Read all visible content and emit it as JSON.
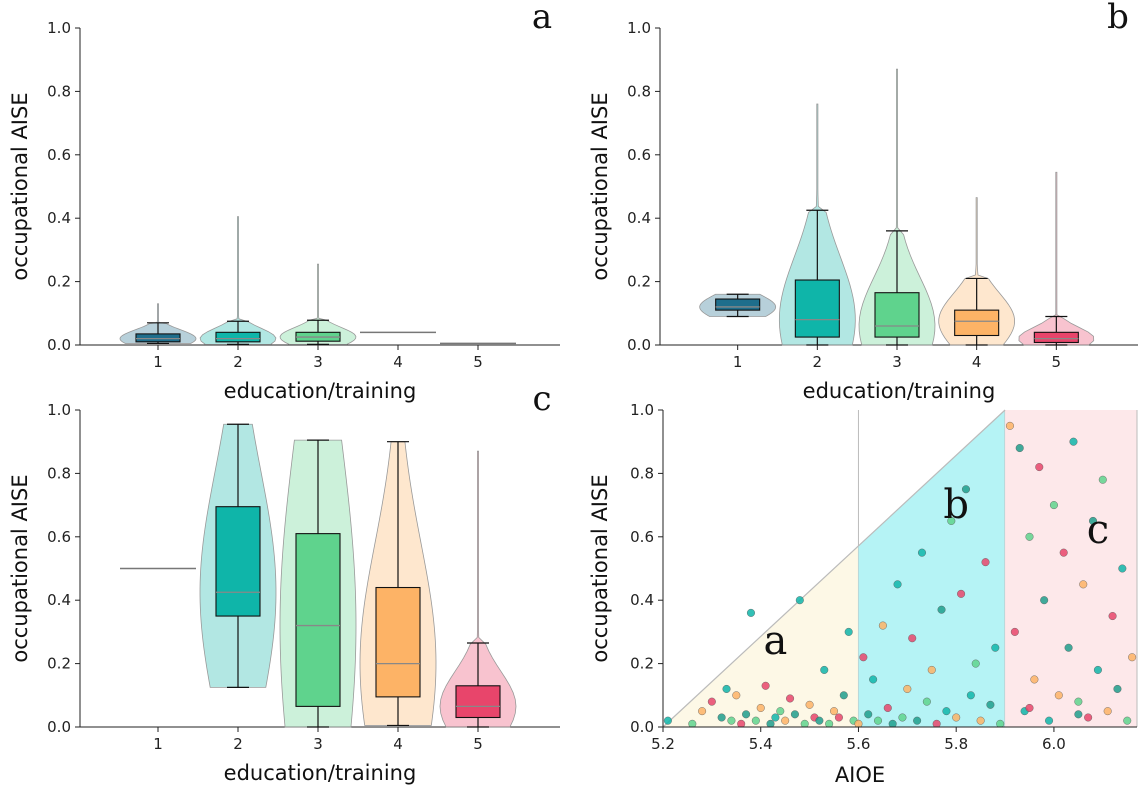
{
  "chart_data": [
    {
      "type": "violin",
      "panel_label": "a",
      "xlabel": "education/training",
      "ylabel": "occupational AISE",
      "ylim": [
        0,
        1.0
      ],
      "yticks": [
        "0.0",
        "0.2",
        "0.4",
        "0.6",
        "0.8",
        "1.0"
      ],
      "categories": [
        "1",
        "2",
        "3",
        "4",
        "5"
      ],
      "groups": [
        {
          "category": "1",
          "min": 0.005,
          "q1": 0.01,
          "median": 0.02,
          "q3": 0.035,
          "max": 0.07,
          "violin_max": 0.13,
          "color": "#1f6e8c"
        },
        {
          "category": "2",
          "min": 0.002,
          "q1": 0.01,
          "median": 0.02,
          "q3": 0.04,
          "max": 0.075,
          "violin_max": 0.405,
          "color": "#0fb5a9"
        },
        {
          "category": "3",
          "min": 0.002,
          "q1": 0.012,
          "median": 0.025,
          "q3": 0.04,
          "max": 0.078,
          "violin_max": 0.255,
          "color": "#5fd38d"
        },
        {
          "category": "4",
          "single_value": 0.04,
          "color": "#fdb366"
        },
        {
          "category": "5",
          "single_value": 0.005,
          "color": "#e8456b"
        }
      ]
    },
    {
      "type": "violin",
      "panel_label": "b",
      "xlabel": "education/training",
      "ylabel": "occupational AISE",
      "ylim": [
        0,
        1.0
      ],
      "yticks": [
        "0.0",
        "0.2",
        "0.4",
        "0.6",
        "0.8",
        "1.0"
      ],
      "categories": [
        "1",
        "2",
        "3",
        "4",
        "5"
      ],
      "groups": [
        {
          "category": "1",
          "min": 0.09,
          "q1": 0.11,
          "median": 0.12,
          "q3": 0.145,
          "max": 0.16,
          "color": "#1f6e8c"
        },
        {
          "category": "2",
          "min": 0.0,
          "q1": 0.025,
          "median": 0.08,
          "q3": 0.205,
          "max": 0.425,
          "violin_max": 0.76,
          "color": "#0fb5a9"
        },
        {
          "category": "3",
          "min": 0.0,
          "q1": 0.025,
          "median": 0.06,
          "q3": 0.165,
          "max": 0.36,
          "violin_max": 0.87,
          "color": "#5fd38d"
        },
        {
          "category": "4",
          "min": 0.0,
          "q1": 0.03,
          "median": 0.075,
          "q3": 0.11,
          "max": 0.21,
          "violin_max": 0.465,
          "color": "#fdb366"
        },
        {
          "category": "5",
          "min": 0.0,
          "q1": 0.008,
          "median": 0.02,
          "q3": 0.04,
          "max": 0.09,
          "violin_max": 0.545,
          "color": "#e8456b"
        }
      ]
    },
    {
      "type": "violin",
      "panel_label": "c",
      "xlabel": "education/training",
      "ylabel": "occupational AISE",
      "ylim": [
        0,
        1.0
      ],
      "yticks": [
        "0.0",
        "0.2",
        "0.4",
        "0.6",
        "0.8",
        "1.0"
      ],
      "categories": [
        "1",
        "2",
        "3",
        "4",
        "5"
      ],
      "groups": [
        {
          "category": "1",
          "single_value": 0.5,
          "color": "#1f6e8c"
        },
        {
          "category": "2",
          "min": 0.125,
          "q1": 0.35,
          "median": 0.425,
          "q3": 0.695,
          "max": 0.955,
          "violin_max": 0.955,
          "color": "#0fb5a9"
        },
        {
          "category": "3",
          "min": 0.0,
          "q1": 0.065,
          "median": 0.32,
          "q3": 0.61,
          "max": 0.905,
          "violin_max": 0.905,
          "color": "#5fd38d"
        },
        {
          "category": "4",
          "min": 0.005,
          "q1": 0.095,
          "median": 0.2,
          "q3": 0.44,
          "max": 0.9,
          "violin_max": 0.9,
          "color": "#fdb366"
        },
        {
          "category": "5",
          "min": 0.0,
          "q1": 0.03,
          "median": 0.065,
          "q3": 0.13,
          "max": 0.265,
          "violin_max": 0.87,
          "color": "#e8456b"
        }
      ]
    },
    {
      "type": "scatter",
      "xlabel": "AIOE",
      "ylabel": "occupational AISE",
      "xlim": [
        5.2,
        6.17
      ],
      "ylim": [
        0,
        1.0
      ],
      "xticks": [
        "5.2",
        "5.4",
        "5.6",
        "5.8",
        "6.0"
      ],
      "yticks": [
        "0.0",
        "0.2",
        "0.4",
        "0.6",
        "0.8",
        "1.0"
      ],
      "regions": [
        {
          "label": "a",
          "x_start": 5.2,
          "x_end": 5.6,
          "color": "#fdf8e6"
        },
        {
          "label": "b",
          "x_start": 5.6,
          "x_end": 5.9,
          "color": "#b5f3f5"
        },
        {
          "label": "c",
          "x_start": 5.9,
          "x_end": 6.17,
          "color": "#fde8ea"
        }
      ],
      "triangle_line": {
        "from": [
          5.2,
          0.0
        ],
        "to": [
          5.9,
          1.0
        ]
      },
      "point_colors": [
        "#0fb5a9",
        "#5fd38d",
        "#fdb366",
        "#e8456b",
        "#1f9e8c"
      ],
      "points": [
        [
          5.21,
          0.02
        ],
        [
          5.26,
          0.01
        ],
        [
          5.28,
          0.05
        ],
        [
          5.3,
          0.08
        ],
        [
          5.32,
          0.03
        ],
        [
          5.33,
          0.12
        ],
        [
          5.34,
          0.02
        ],
        [
          5.35,
          0.1
        ],
        [
          5.36,
          0.01
        ],
        [
          5.37,
          0.04
        ],
        [
          5.38,
          0.36
        ],
        [
          5.39,
          0.02
        ],
        [
          5.4,
          0.06
        ],
        [
          5.41,
          0.13
        ],
        [
          5.42,
          0.01
        ],
        [
          5.43,
          0.03
        ],
        [
          5.44,
          0.05
        ],
        [
          5.45,
          0.02
        ],
        [
          5.46,
          0.09
        ],
        [
          5.47,
          0.04
        ],
        [
          5.48,
          0.4
        ],
        [
          5.49,
          0.01
        ],
        [
          5.5,
          0.07
        ],
        [
          5.51,
          0.03
        ],
        [
          5.52,
          0.02
        ],
        [
          5.53,
          0.18
        ],
        [
          5.54,
          0.01
        ],
        [
          5.55,
          0.05
        ],
        [
          5.56,
          0.03
        ],
        [
          5.57,
          0.1
        ],
        [
          5.58,
          0.3
        ],
        [
          5.59,
          0.02
        ],
        [
          5.6,
          0.01
        ],
        [
          5.61,
          0.22
        ],
        [
          5.62,
          0.04
        ],
        [
          5.63,
          0.15
        ],
        [
          5.64,
          0.02
        ],
        [
          5.65,
          0.32
        ],
        [
          5.66,
          0.06
        ],
        [
          5.67,
          0.01
        ],
        [
          5.68,
          0.45
        ],
        [
          5.69,
          0.03
        ],
        [
          5.7,
          0.12
        ],
        [
          5.71,
          0.28
        ],
        [
          5.72,
          0.02
        ],
        [
          5.73,
          0.55
        ],
        [
          5.74,
          0.08
        ],
        [
          5.75,
          0.18
        ],
        [
          5.76,
          0.01
        ],
        [
          5.77,
          0.37
        ],
        [
          5.78,
          0.05
        ],
        [
          5.79,
          0.65
        ],
        [
          5.8,
          0.03
        ],
        [
          5.81,
          0.42
        ],
        [
          5.82,
          0.75
        ],
        [
          5.83,
          0.1
        ],
        [
          5.84,
          0.2
        ],
        [
          5.85,
          0.02
        ],
        [
          5.86,
          0.52
        ],
        [
          5.87,
          0.07
        ],
        [
          5.88,
          0.25
        ],
        [
          5.89,
          0.01
        ],
        [
          5.91,
          0.95
        ],
        [
          5.92,
          0.3
        ],
        [
          5.93,
          0.88
        ],
        [
          5.94,
          0.05
        ],
        [
          5.95,
          0.6
        ],
        [
          5.96,
          0.15
        ],
        [
          5.97,
          0.82
        ],
        [
          5.98,
          0.4
        ],
        [
          5.99,
          0.02
        ],
        [
          6.0,
          0.7
        ],
        [
          6.01,
          0.1
        ],
        [
          6.02,
          0.55
        ],
        [
          6.03,
          0.25
        ],
        [
          6.04,
          0.9
        ],
        [
          6.05,
          0.08
        ],
        [
          6.06,
          0.45
        ],
        [
          6.07,
          0.03
        ],
        [
          6.08,
          0.65
        ],
        [
          6.09,
          0.18
        ],
        [
          6.1,
          0.78
        ],
        [
          6.11,
          0.05
        ],
        [
          6.12,
          0.35
        ],
        [
          6.13,
          0.12
        ],
        [
          6.14,
          0.5
        ],
        [
          6.15,
          0.02
        ],
        [
          6.16,
          0.22
        ],
        [
          5.95,
          0.06
        ],
        [
          6.05,
          0.04
        ]
      ]
    }
  ]
}
